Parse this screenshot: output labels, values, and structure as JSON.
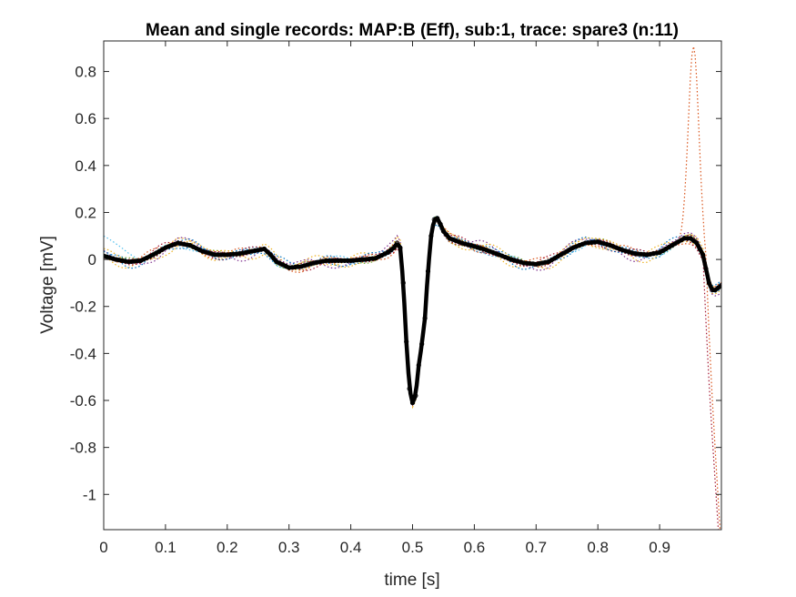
{
  "chart_data": {
    "type": "line",
    "title": "Mean and single records: MAP:B (Eff), sub:1, trace: spare3 (n:11)",
    "xlabel": "time [s]",
    "ylabel": "Voltage [mV]",
    "xlim": [
      0,
      1.0
    ],
    "ylim": [
      -1.15,
      0.93
    ],
    "x_ticks": [
      {
        "v": 0,
        "label": "0"
      },
      {
        "v": 0.1,
        "label": "0.1"
      },
      {
        "v": 0.2,
        "label": "0.2"
      },
      {
        "v": 0.3,
        "label": "0.3"
      },
      {
        "v": 0.4,
        "label": "0.4"
      },
      {
        "v": 0.5,
        "label": "0.5"
      },
      {
        "v": 0.6,
        "label": "0.6"
      },
      {
        "v": 0.7,
        "label": "0.7"
      },
      {
        "v": 0.8,
        "label": "0.8"
      },
      {
        "v": 0.9,
        "label": "0.9"
      }
    ],
    "y_ticks": [
      {
        "v": 0.8,
        "label": "0.8"
      },
      {
        "v": 0.6,
        "label": "0.6"
      },
      {
        "v": 0.4,
        "label": "0.4"
      },
      {
        "v": 0.2,
        "label": "0.2"
      },
      {
        "v": 0,
        "label": "0"
      },
      {
        "v": -0.2,
        "label": "-0.2"
      },
      {
        "v": -0.4,
        "label": "-0.4"
      },
      {
        "v": -0.6,
        "label": "-0.6"
      },
      {
        "v": -0.8,
        "label": "-0.8"
      },
      {
        "v": -1,
        "label": "-1"
      }
    ],
    "grid": false,
    "mean": {
      "color": "#000000",
      "points": [
        [
          0.0,
          0.015
        ],
        [
          0.02,
          0.0
        ],
        [
          0.04,
          -0.01
        ],
        [
          0.06,
          -0.005
        ],
        [
          0.08,
          0.02
        ],
        [
          0.1,
          0.05
        ],
        [
          0.12,
          0.07
        ],
        [
          0.14,
          0.06
        ],
        [
          0.16,
          0.035
        ],
        [
          0.18,
          0.02
        ],
        [
          0.2,
          0.02
        ],
        [
          0.22,
          0.025
        ],
        [
          0.24,
          0.035
        ],
        [
          0.26,
          0.045
        ],
        [
          0.27,
          0.02
        ],
        [
          0.28,
          -0.01
        ],
        [
          0.3,
          -0.035
        ],
        [
          0.32,
          -0.03
        ],
        [
          0.34,
          -0.015
        ],
        [
          0.36,
          -0.005
        ],
        [
          0.38,
          -0.005
        ],
        [
          0.4,
          -0.005
        ],
        [
          0.42,
          0.0
        ],
        [
          0.44,
          0.005
        ],
        [
          0.46,
          0.03
        ],
        [
          0.47,
          0.05
        ],
        [
          0.475,
          0.07
        ],
        [
          0.48,
          0.05
        ],
        [
          0.485,
          -0.1
        ],
        [
          0.49,
          -0.35
        ],
        [
          0.495,
          -0.55
        ],
        [
          0.5,
          -0.61
        ],
        [
          0.505,
          -0.58
        ],
        [
          0.51,
          -0.45
        ],
        [
          0.515,
          -0.36
        ],
        [
          0.52,
          -0.25
        ],
        [
          0.525,
          -0.05
        ],
        [
          0.53,
          0.1
        ],
        [
          0.535,
          0.17
        ],
        [
          0.54,
          0.175
        ],
        [
          0.545,
          0.15
        ],
        [
          0.55,
          0.12
        ],
        [
          0.56,
          0.09
        ],
        [
          0.58,
          0.07
        ],
        [
          0.6,
          0.055
        ],
        [
          0.62,
          0.04
        ],
        [
          0.64,
          0.02
        ],
        [
          0.66,
          0.0
        ],
        [
          0.68,
          -0.015
        ],
        [
          0.7,
          -0.02
        ],
        [
          0.72,
          -0.01
        ],
        [
          0.74,
          0.02
        ],
        [
          0.76,
          0.05
        ],
        [
          0.78,
          0.07
        ],
        [
          0.8,
          0.075
        ],
        [
          0.82,
          0.06
        ],
        [
          0.84,
          0.04
        ],
        [
          0.86,
          0.025
        ],
        [
          0.88,
          0.02
        ],
        [
          0.9,
          0.03
        ],
        [
          0.92,
          0.06
        ],
        [
          0.94,
          0.09
        ],
        [
          0.95,
          0.09
        ],
        [
          0.96,
          0.07
        ],
        [
          0.97,
          0.02
        ],
        [
          0.975,
          -0.04
        ],
        [
          0.98,
          -0.1
        ],
        [
          0.985,
          -0.13
        ],
        [
          0.99,
          -0.13
        ],
        [
          0.995,
          -0.12
        ],
        [
          1.0,
          -0.11
        ]
      ]
    },
    "series": [
      {
        "color": "#0072BD",
        "offset": 0.012,
        "tail": 0.0
      },
      {
        "color": "#D95319",
        "offset": -0.015,
        "tail": 0.0
      },
      {
        "color": "#EDB120",
        "offset": 0.02,
        "tail": 0.0
      },
      {
        "color": "#7E2F8E",
        "offset": -0.025,
        "tail": 0.0
      },
      {
        "color": "#77AC30",
        "offset": 0.008,
        "tail": 0.0
      },
      {
        "color": "#4DBEEE",
        "offset": -0.01,
        "tail": 0.0,
        "start": 0.1
      },
      {
        "color": "#A2142F",
        "offset": 0.015,
        "tail": 0.0
      },
      {
        "color": "#0072BD",
        "offset": -0.02,
        "tail": 0.0
      },
      {
        "color": "#EDB120",
        "offset": 0.025,
        "tail": 0.0
      },
      {
        "color": "#D95319",
        "offset": 0.0,
        "tail": 0.0,
        "spike": 0.91
      },
      {
        "color": "#A2142F",
        "offset": -0.005,
        "tail": 0.0,
        "drop": -1.15
      }
    ]
  }
}
